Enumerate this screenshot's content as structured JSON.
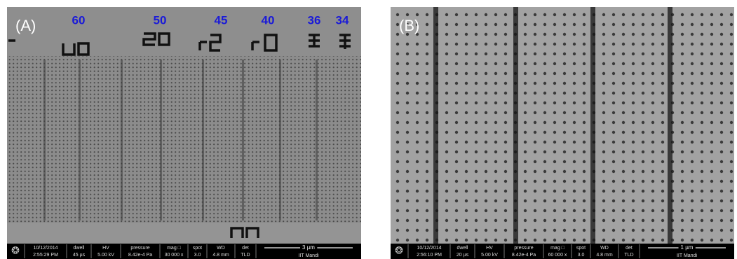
{
  "panels": [
    {
      "label": "(A)",
      "markers": [
        "60",
        "50",
        "45",
        "40",
        "36",
        "34"
      ],
      "info": [
        [
          "10/12/2014",
          "2:55:29 PM"
        ],
        [
          "dwell",
          "45 µs"
        ],
        [
          "HV",
          "5.00 kV"
        ],
        [
          "pressure",
          "8.42e-4 Pa"
        ],
        [
          "mag □",
          "30 000 x"
        ],
        [
          "spot",
          "3.0"
        ],
        [
          "WD",
          "4.8 mm"
        ],
        [
          "det",
          "TLD"
        ]
      ],
      "scale": "3 µm",
      "institute": "IIT Mandi"
    },
    {
      "label": "(B)",
      "info": [
        [
          "10/12/2014",
          "2:56:10 PM"
        ],
        [
          "dwell",
          "20 µs"
        ],
        [
          "HV",
          "5.00 kV"
        ],
        [
          "pressure",
          "8.42e-4 Pa"
        ],
        [
          "mag □",
          "60 000 x"
        ],
        [
          "spot",
          "3.0"
        ],
        [
          "WD",
          "4.8 mm"
        ],
        [
          "det",
          "TLD"
        ]
      ],
      "scale": "1 µm",
      "institute": "IIT Mandi"
    }
  ]
}
